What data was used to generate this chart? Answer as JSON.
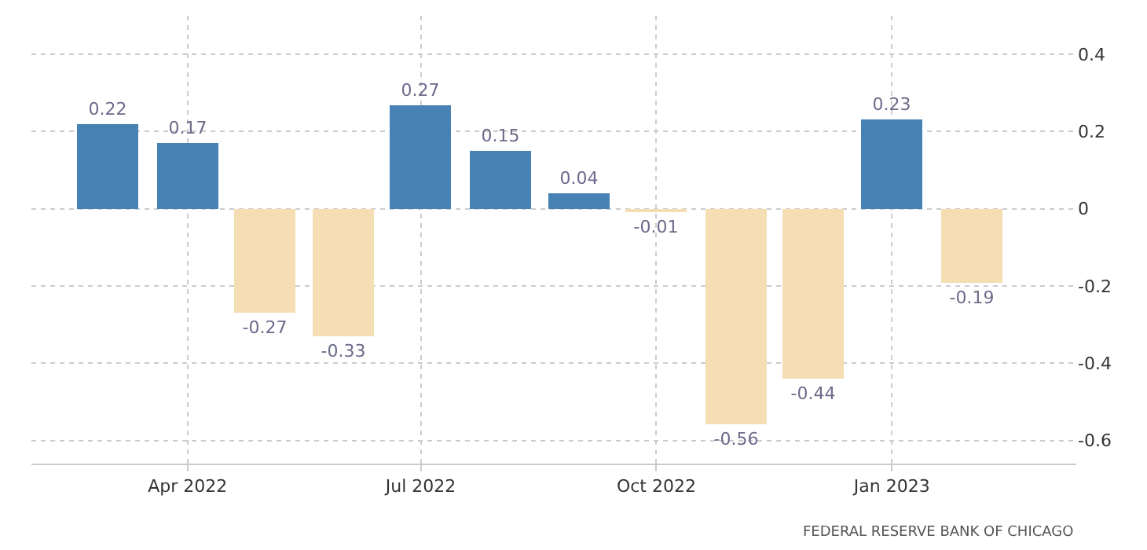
{
  "chart_data": {
    "type": "bar",
    "x": [
      "2022-03-01",
      "2022-04-01",
      "2022-05-01",
      "2022-06-01",
      "2022-07-01",
      "2022-08-01",
      "2022-09-01",
      "2022-10-01",
      "2022-11-01",
      "2022-12-01",
      "2023-01-01",
      "2023-02-01"
    ],
    "values": [
      0.22,
      0.17,
      -0.27,
      -0.33,
      0.27,
      0.15,
      0.04,
      -0.01,
      -0.56,
      -0.44,
      0.23,
      -0.19
    ],
    "colors": [
      "#4682b4",
      "#4682b4",
      "#f5deb3",
      "#f5deb3",
      "#4682b4",
      "#4682b4",
      "#4682b4",
      "#f5deb3",
      "#f5deb3",
      "#f5deb3",
      "#4682b4",
      "#f5deb3"
    ],
    "data_labels": true,
    "xlim": [
      "2022-01-30",
      "2023-03-14"
    ],
    "xticks": [
      {
        "value": "2022-04-01",
        "label": "Apr 2022"
      },
      {
        "value": "2022-07-01",
        "label": "Jul 2022"
      },
      {
        "value": "2022-10-01",
        "label": "Oct 2022"
      },
      {
        "value": "2023-01-01",
        "label": "Jan 2023"
      }
    ],
    "ylim": [
      -0.66,
      0.5
    ],
    "yticks": [
      -0.6,
      -0.4,
      -0.2,
      0,
      0.2,
      0.4
    ],
    "grid": true,
    "annotations": [
      "FEDERAL RESERVE BANK OF CHICAGO"
    ]
  }
}
